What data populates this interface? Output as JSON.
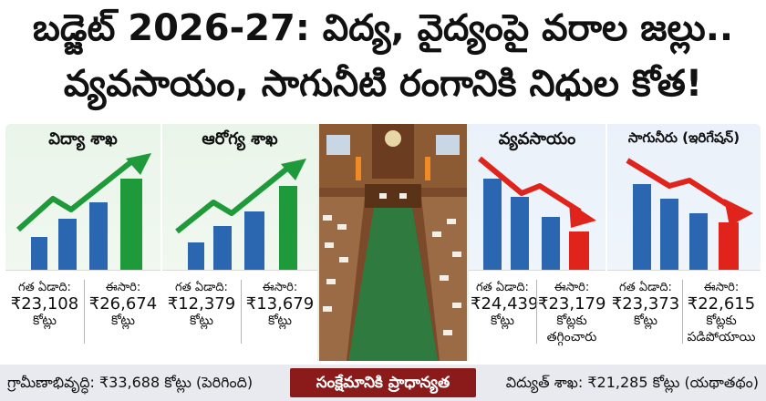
{
  "headline": {
    "line1": "బడ్జెట్ 2026-27: విద్య, వైద్యంపై వరాల జల్లు..",
    "line2": "వ్యవసాయం, సాగునీటి రంగానికి నిధుల కోత!"
  },
  "panels": [
    {
      "title": "విద్యా శాఖ",
      "trend": "up",
      "previous": {
        "label": "గత ఏడాది:",
        "value": "₹23,108",
        "unit": "కోట్లు"
      },
      "current": {
        "label": "ఈసారి:",
        "value": "₹26,674",
        "unit": "కోట్లు",
        "note": ""
      }
    },
    {
      "title": "ఆరోగ్య శాఖ",
      "trend": "up",
      "previous": {
        "label": "గత ఏడాది:",
        "value": "₹12,379",
        "unit": "కోట్లు"
      },
      "current": {
        "label": "ఈసారి:",
        "value": "₹13,679",
        "unit": "కోట్లు",
        "note": ""
      }
    },
    {
      "title": "వ్యవసాయం",
      "trend": "down",
      "previous": {
        "label": "గత ఏడాది:",
        "value": "₹24,439",
        "unit": "కోట్లు"
      },
      "current": {
        "label": "ఈసారి:",
        "value": "₹23,179",
        "unit": "కోట్లకు",
        "note": "తగ్గించారు"
      }
    },
    {
      "title": "సాగునీరు (ఇరిగేషన్)",
      "trend": "down",
      "previous": {
        "label": "గత ఏడాది:",
        "value": "₹23,373",
        "unit": "కోట్లు"
      },
      "current": {
        "label": "ఈసారి:",
        "value": "₹22,615",
        "unit": "కోట్లకు",
        "note": "పడిపోయాయి"
      }
    }
  ],
  "footer": {
    "left": "గ్రామీణాభివృద్ధి: ₹33,688 కోట్లు (పెరిగింది)",
    "center": "సంక్షేమానికి ప్రాధాన్యత",
    "right": "విద్యుత్ శాఖ: ₹21,285 కోట్లు (యథాతథం)"
  },
  "colors": {
    "up_arrow": "#1e9a3a",
    "down_arrow": "#e0231b",
    "bar_blue": "#2b66b0",
    "bar_green": "#1e9a3a",
    "bar_red": "#e0231b",
    "footer_badge": "#8b1a1a"
  },
  "icons": {
    "up_trend": "trend-up-arrow-icon",
    "down_trend": "trend-down-arrow-icon",
    "photo": "assembly-hall-photo"
  }
}
